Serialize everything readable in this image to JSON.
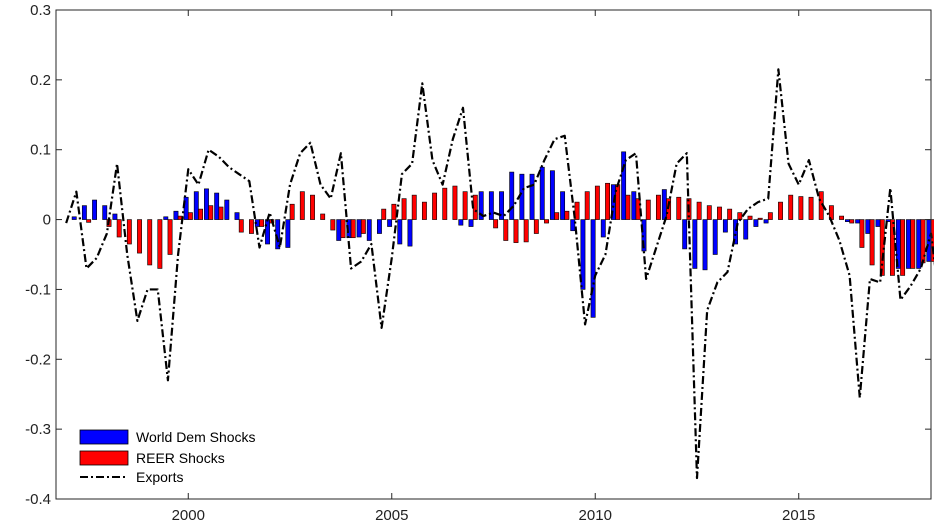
{
  "chart_data": {
    "type": "bar",
    "title": "",
    "xlabel": "",
    "ylabel": "",
    "ylim": [
      -0.4,
      0.3
    ],
    "xlim": [
      1996.75,
      2018.25
    ],
    "x_ticks": [
      2000,
      2005,
      2010,
      2015
    ],
    "y_ticks": [
      -0.4,
      -0.3,
      -0.2,
      -0.1,
      0,
      0.1,
      0.2,
      0.3
    ],
    "y_tick_labels": [
      "-0.4",
      "-0.3",
      "-0.2",
      "-0.1",
      "0",
      "0.1",
      "0.2",
      "0.3"
    ],
    "x_tick_labels": [
      "2000",
      "2005",
      "2010",
      "2015"
    ],
    "grid": false,
    "bar_mode": "grouped-pairs",
    "start": "1997Q1",
    "frequency": "quarterly",
    "series": [
      {
        "name": "World Dem Shocks",
        "kind": "bar",
        "color": "#0000ff",
        "values": [
          0.0,
          0.004,
          0.02,
          0.028,
          0.02,
          0.008,
          0.0,
          0.0,
          0.0,
          0.0,
          0.004,
          0.012,
          0.032,
          0.04,
          0.044,
          0.038,
          0.028,
          0.01,
          0.0,
          -0.01,
          -0.035,
          -0.042,
          -0.04,
          0.0,
          0.0,
          0.0,
          0.0,
          -0.03,
          -0.026,
          -0.025,
          -0.03,
          -0.02,
          -0.01,
          -0.035,
          -0.038,
          0.0,
          0.0,
          0.0,
          0.0,
          -0.008,
          -0.01,
          0.04,
          0.04,
          0.04,
          0.068,
          0.065,
          0.065,
          0.075,
          0.07,
          0.04,
          -0.016,
          -0.1,
          -0.14,
          -0.025,
          0.05,
          0.097,
          0.04,
          -0.045,
          0.0,
          0.043,
          0.0,
          -0.042,
          -0.07,
          -0.072,
          -0.05,
          -0.018,
          -0.035,
          -0.028,
          -0.01,
          -0.005,
          0.0,
          0.0,
          0.0,
          0.0,
          0.0,
          0.0,
          0.0,
          -0.003,
          -0.005,
          -0.02,
          -0.01,
          -0.003,
          -0.07,
          -0.07,
          -0.07,
          -0.06,
          0.005,
          0.004,
          0.0,
          0.0,
          0.005
        ]
      },
      {
        "name": "REER Shocks",
        "kind": "bar",
        "color": "#ff0000",
        "values": [
          0.0,
          0.0,
          -0.004,
          0.0,
          -0.01,
          -0.025,
          -0.035,
          -0.048,
          -0.065,
          -0.07,
          -0.05,
          0.005,
          0.01,
          0.015,
          0.02,
          0.018,
          0.0,
          -0.018,
          -0.02,
          -0.01,
          -0.005,
          0.0,
          0.022,
          0.04,
          0.035,
          0.008,
          -0.015,
          -0.026,
          -0.026,
          -0.02,
          0.0,
          0.015,
          0.022,
          0.03,
          0.035,
          0.025,
          0.038,
          0.045,
          0.048,
          0.04,
          0.035,
          0.0,
          -0.012,
          -0.03,
          -0.033,
          -0.032,
          -0.02,
          -0.005,
          0.01,
          0.012,
          0.025,
          0.04,
          0.048,
          0.052,
          0.05,
          0.035,
          0.03,
          0.028,
          0.035,
          0.03,
          0.032,
          0.03,
          0.025,
          0.02,
          0.018,
          0.015,
          0.01,
          0.005,
          0.002,
          0.01,
          0.025,
          0.035,
          0.033,
          0.032,
          0.04,
          0.02,
          0.005,
          -0.005,
          -0.04,
          -0.065,
          -0.08,
          -0.08,
          -0.08,
          -0.07,
          -0.062,
          -0.06,
          -0.06,
          -0.06,
          -0.07,
          -0.065,
          -0.02
        ]
      },
      {
        "name": "Exports",
        "kind": "line",
        "style": "dash-dot",
        "color": "#000000",
        "values": [
          -0.005,
          0.04,
          -0.07,
          -0.055,
          -0.02,
          0.08,
          -0.05,
          -0.145,
          -0.1,
          -0.1,
          -0.23,
          -0.05,
          0.072,
          0.05,
          0.1,
          0.09,
          0.075,
          0.065,
          0.055,
          -0.04,
          0.01,
          -0.04,
          0.05,
          0.095,
          0.11,
          0.05,
          0.03,
          0.095,
          -0.07,
          -0.06,
          -0.035,
          -0.155,
          -0.055,
          0.065,
          0.08,
          0.195,
          0.085,
          0.05,
          0.115,
          0.16,
          0.015,
          0.005,
          0.01,
          0.005,
          0.02,
          0.045,
          0.05,
          0.085,
          0.115,
          0.12,
          0.0,
          -0.15,
          -0.08,
          -0.05,
          0.04,
          0.085,
          0.095,
          -0.085,
          -0.04,
          0.005,
          0.08,
          0.095,
          -0.37,
          -0.13,
          -0.09,
          -0.075,
          -0.005,
          0.015,
          0.025,
          0.03,
          0.215,
          0.08,
          0.05,
          0.085,
          0.03,
          0.005,
          -0.03,
          -0.08,
          -0.255,
          -0.085,
          -0.09,
          0.045,
          -0.115,
          -0.095,
          -0.07,
          -0.02,
          -0.135,
          -0.03,
          -0.035,
          -0.03,
          -0.03
        ]
      }
    ],
    "legend": {
      "position": "bottom-left",
      "entries": [
        "World Dem Shocks",
        "REER Shocks",
        "Exports"
      ]
    }
  }
}
